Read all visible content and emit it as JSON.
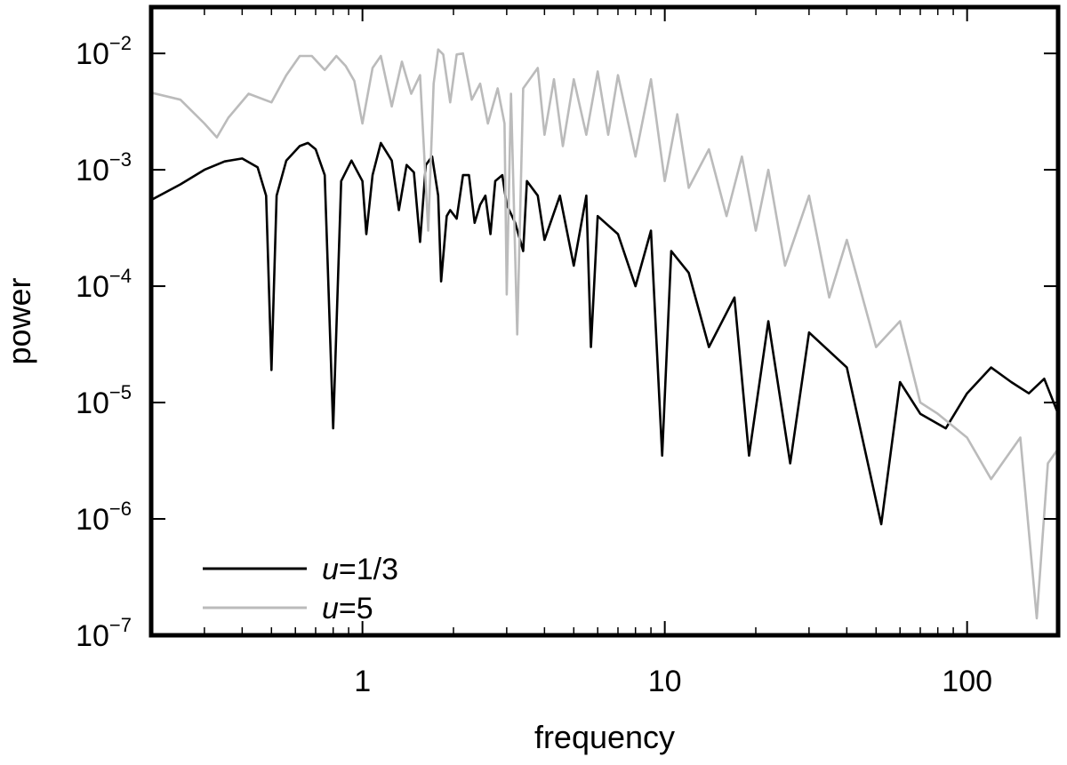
{
  "chart_data": {
    "type": "line",
    "title": "",
    "xlabel": "frequency",
    "ylabel": "power",
    "xscale": "log",
    "yscale": "log",
    "xlim": [
      0.2,
      200
    ],
    "ylim": [
      1e-07,
      0.025
    ],
    "grid": false,
    "legend_position": "bottom-left",
    "x_ticks": [
      {
        "value": 1,
        "label": "1"
      },
      {
        "value": 10,
        "label": "10"
      },
      {
        "value": 100,
        "label": "100"
      }
    ],
    "y_ticks": [
      {
        "value": 0.01,
        "base": "10",
        "exp": "−2"
      },
      {
        "value": 0.001,
        "base": "10",
        "exp": "−3"
      },
      {
        "value": 0.0001,
        "base": "10",
        "exp": "−4"
      },
      {
        "value": 1e-05,
        "base": "10",
        "exp": "−5"
      },
      {
        "value": 1e-06,
        "base": "10",
        "exp": "−6"
      },
      {
        "value": 1e-07,
        "base": "10",
        "exp": "−7"
      }
    ],
    "series": [
      {
        "name_var": "u",
        "name_rest": "=1/3",
        "color": "#000000",
        "points": [
          [
            0.2,
            0.00055
          ],
          [
            0.25,
            0.00075
          ],
          [
            0.3,
            0.001
          ],
          [
            0.35,
            0.00118
          ],
          [
            0.4,
            0.00125
          ],
          [
            0.45,
            0.00105
          ],
          [
            0.48,
            0.0006
          ],
          [
            0.5,
            1.9e-05
          ],
          [
            0.52,
            0.0006
          ],
          [
            0.56,
            0.0012
          ],
          [
            0.62,
            0.0016
          ],
          [
            0.66,
            0.0017
          ],
          [
            0.7,
            0.0015
          ],
          [
            0.75,
            0.0009
          ],
          [
            0.8,
            6e-06
          ],
          [
            0.85,
            0.0008
          ],
          [
            0.92,
            0.0012
          ],
          [
            1.0,
            0.0008
          ],
          [
            1.03,
            0.00028
          ],
          [
            1.08,
            0.0009
          ],
          [
            1.15,
            0.0017
          ],
          [
            1.25,
            0.0012
          ],
          [
            1.32,
            0.00045
          ],
          [
            1.4,
            0.0011
          ],
          [
            1.48,
            0.00095
          ],
          [
            1.55,
            0.00024
          ],
          [
            1.62,
            0.0011
          ],
          [
            1.7,
            0.0013
          ],
          [
            1.78,
            0.0006
          ],
          [
            1.82,
            0.00011
          ],
          [
            1.9,
            0.0004
          ],
          [
            1.95,
            0.00045
          ],
          [
            2.05,
            0.00038
          ],
          [
            2.15,
            0.0009
          ],
          [
            2.25,
            0.0009
          ],
          [
            2.35,
            0.00035
          ],
          [
            2.45,
            0.0005
          ],
          [
            2.55,
            0.0006
          ],
          [
            2.65,
            0.00028
          ],
          [
            2.75,
            0.0008
          ],
          [
            2.9,
            0.0009
          ],
          [
            3.0,
            0.0005
          ],
          [
            3.2,
            0.00035
          ],
          [
            3.4,
            0.0002
          ],
          [
            3.5,
            0.0008
          ],
          [
            3.8,
            0.0006
          ],
          [
            4.0,
            0.00025
          ],
          [
            4.5,
            0.0006
          ],
          [
            5.0,
            0.00015
          ],
          [
            5.5,
            0.0006
          ],
          [
            5.7,
            3e-05
          ],
          [
            6.0,
            0.0004
          ],
          [
            7.0,
            0.00028
          ],
          [
            8.0,
            0.0001
          ],
          [
            9.0,
            0.0003
          ],
          [
            9.8,
            3.5e-06
          ],
          [
            10.5,
            0.0002
          ],
          [
            12.0,
            0.00013
          ],
          [
            14.0,
            3e-05
          ],
          [
            17.0,
            8e-05
          ],
          [
            19.0,
            3.5e-06
          ],
          [
            22.0,
            5e-05
          ],
          [
            26.0,
            3e-06
          ],
          [
            30.0,
            4e-05
          ],
          [
            40.0,
            2e-05
          ],
          [
            52.0,
            9e-07
          ],
          [
            60.0,
            1.5e-05
          ],
          [
            70.0,
            8e-06
          ],
          [
            85.0,
            6e-06
          ],
          [
            100.0,
            1.2e-05
          ],
          [
            120.0,
            2e-05
          ],
          [
            140.0,
            1.5e-05
          ],
          [
            160.0,
            1.2e-05
          ],
          [
            180.0,
            1.6e-05
          ],
          [
            200.0,
            8e-06
          ]
        ]
      },
      {
        "name_var": "u",
        "name_rest": "=5",
        "color": "#bbbbbb",
        "points": [
          [
            0.2,
            0.0046
          ],
          [
            0.25,
            0.004
          ],
          [
            0.3,
            0.0025
          ],
          [
            0.33,
            0.0019
          ],
          [
            0.36,
            0.0028
          ],
          [
            0.42,
            0.0045
          ],
          [
            0.5,
            0.0038
          ],
          [
            0.56,
            0.0065
          ],
          [
            0.62,
            0.0095
          ],
          [
            0.68,
            0.0095
          ],
          [
            0.75,
            0.0072
          ],
          [
            0.82,
            0.0095
          ],
          [
            0.88,
            0.0078
          ],
          [
            0.94,
            0.0058
          ],
          [
            1.0,
            0.0025
          ],
          [
            1.08,
            0.0075
          ],
          [
            1.15,
            0.0095
          ],
          [
            1.25,
            0.0035
          ],
          [
            1.35,
            0.0085
          ],
          [
            1.45,
            0.0045
          ],
          [
            1.55,
            0.0065
          ],
          [
            1.65,
            0.0003
          ],
          [
            1.72,
            0.0055
          ],
          [
            1.78,
            0.0108
          ],
          [
            1.85,
            0.0098
          ],
          [
            1.95,
            0.0038
          ],
          [
            2.05,
            0.0098
          ],
          [
            2.15,
            0.01
          ],
          [
            2.3,
            0.004
          ],
          [
            2.45,
            0.0055
          ],
          [
            2.6,
            0.0025
          ],
          [
            2.8,
            0.005
          ],
          [
            2.95,
            0.0025
          ],
          [
            3.0,
            8.5e-05
          ],
          [
            3.1,
            0.0045
          ],
          [
            3.25,
            3.85e-05
          ],
          [
            3.4,
            0.005
          ],
          [
            3.8,
            0.0075
          ],
          [
            4.0,
            0.002
          ],
          [
            4.3,
            0.006
          ],
          [
            4.6,
            0.0016
          ],
          [
            5.0,
            0.006
          ],
          [
            5.5,
            0.002
          ],
          [
            6.0,
            0.007
          ],
          [
            6.5,
            0.002
          ],
          [
            7.0,
            0.0065
          ],
          [
            8.0,
            0.0013
          ],
          [
            9.0,
            0.006
          ],
          [
            10.0,
            0.0008
          ],
          [
            11.0,
            0.003
          ],
          [
            12.0,
            0.0007
          ],
          [
            14.0,
            0.0015
          ],
          [
            16.0,
            0.0004
          ],
          [
            18.0,
            0.0013
          ],
          [
            20.0,
            0.0003
          ],
          [
            22.0,
            0.001
          ],
          [
            25.0,
            0.00015
          ],
          [
            30.0,
            0.0006
          ],
          [
            35.0,
            8e-05
          ],
          [
            40.0,
            0.00025
          ],
          [
            50.0,
            3e-05
          ],
          [
            60.0,
            5e-05
          ],
          [
            70.0,
            1e-05
          ],
          [
            80.0,
            8e-06
          ],
          [
            100.0,
            5e-06
          ],
          [
            120.0,
            2.2e-06
          ],
          [
            150.0,
            5e-06
          ],
          [
            170.0,
            1.4e-07
          ],
          [
            185.0,
            3e-06
          ],
          [
            200.0,
            4e-06
          ]
        ]
      }
    ]
  }
}
